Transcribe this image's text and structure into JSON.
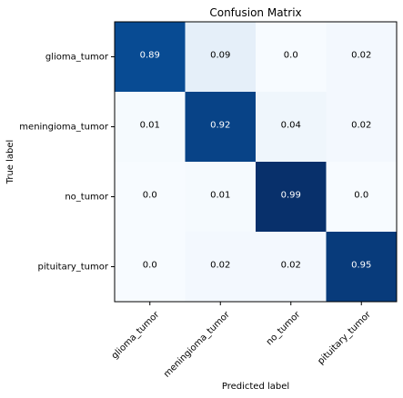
{
  "chart_data": {
    "type": "heatmap",
    "title": "Confusion Matrix",
    "xlabel": "Predicted label",
    "ylabel": "True label",
    "x_categories": [
      "glioma_tumor",
      "meningioma_tumor",
      "no_tumor",
      "pituitary_tumor"
    ],
    "y_categories": [
      "glioma_tumor",
      "meningioma_tumor",
      "no_tumor",
      "pituitary_tumor"
    ],
    "values": [
      [
        0.89,
        0.09,
        0.0,
        0.02
      ],
      [
        0.01,
        0.92,
        0.04,
        0.02
      ],
      [
        0.0,
        0.01,
        0.99,
        0.0
      ],
      [
        0.0,
        0.02,
        0.02,
        0.95
      ]
    ],
    "value_labels": [
      [
        "0.89",
        "0.09",
        "0.0",
        "0.02"
      ],
      [
        "0.01",
        "0.92",
        "0.04",
        "0.02"
      ],
      [
        "0.0",
        "0.01",
        "0.99",
        "0.0"
      ],
      [
        "0.0",
        "0.02",
        "0.02",
        "0.95"
      ]
    ],
    "colormap": "Blues",
    "color_range": [
      0.0,
      0.99
    ],
    "colors": {
      "low": "#f7fbff",
      "high": "#08306b",
      "text_dark": "#000000",
      "text_light": "#ffffff"
    },
    "grid": false,
    "legend": "none"
  }
}
